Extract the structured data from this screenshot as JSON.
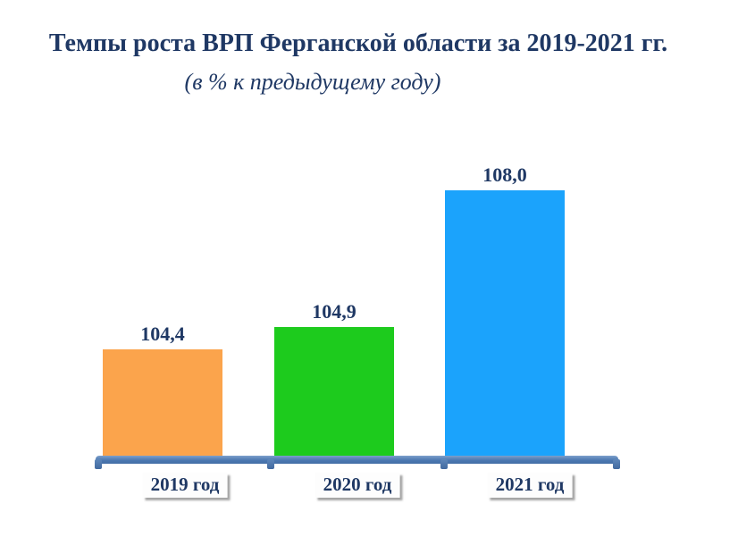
{
  "chart_data": {
    "type": "bar",
    "title": "Темпы роста ВРП Ферганской области за 2019-2021 гг.",
    "subtitle": "(в % к предыдущему году)",
    "categories": [
      "2019 год",
      "2020 год",
      "2021 год"
    ],
    "values": [
      104.4,
      104.9,
      108.0
    ],
    "value_labels": [
      "104,4",
      "104,9",
      "108,0"
    ],
    "bar_colors": [
      "#FBA44C",
      "#1DCB1D",
      "#1BA3FC"
    ],
    "ylabel": "",
    "xlabel": "",
    "ylim": [
      102,
      109
    ],
    "baseline": 102,
    "grid": false,
    "legend": "none",
    "axis_color": "#4A76B0",
    "text_color": "#1F3864",
    "background_color": "#FFFFFF"
  }
}
